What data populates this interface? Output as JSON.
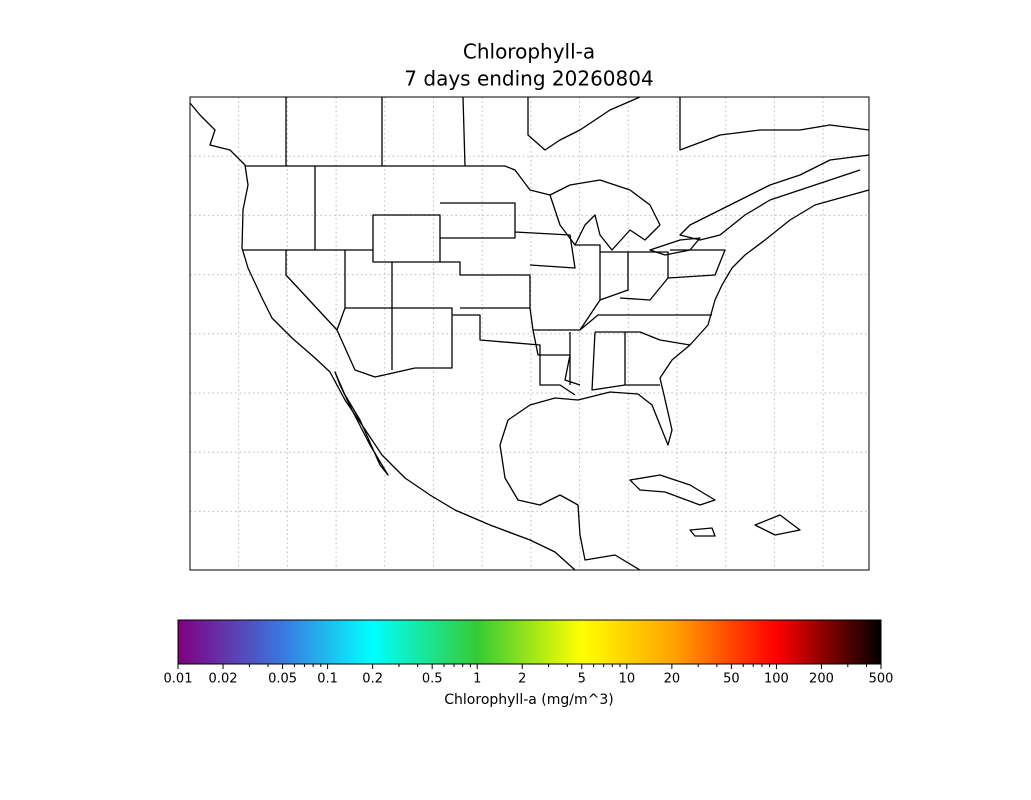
{
  "title": [
    "Chlorophyll-a",
    "7 days ending 20260804"
  ],
  "colorbar": {
    "label": "Chlorophyll-a (mg/m^3)",
    "scale": "log",
    "lim": [
      0.01,
      500
    ],
    "ticks": [
      0.01,
      0.02,
      0.05,
      0.1,
      0.2,
      0.5,
      1,
      2,
      5,
      10,
      20,
      50,
      100,
      200,
      500
    ],
    "minor_ticks": [
      0.03,
      0.04,
      0.06,
      0.07,
      0.08,
      0.09,
      0.3,
      0.4,
      0.6,
      0.7,
      0.8,
      0.9,
      3,
      4,
      6,
      7,
      8,
      9,
      30,
      40,
      60,
      70,
      80,
      90,
      300,
      400
    ],
    "colormap": [
      {
        "value": 0.01,
        "color": "#800080"
      },
      {
        "value": 0.05,
        "color": "#3a78e0"
      },
      {
        "value": 0.2,
        "color": "#00ffff"
      },
      {
        "value": 1,
        "color": "#33cc33"
      },
      {
        "value": 5,
        "color": "#ffff00"
      },
      {
        "value": 20,
        "color": "#ffa500"
      },
      {
        "value": 100,
        "color": "#ff0000"
      },
      {
        "value": 500,
        "color": "#000000"
      }
    ]
  }
}
